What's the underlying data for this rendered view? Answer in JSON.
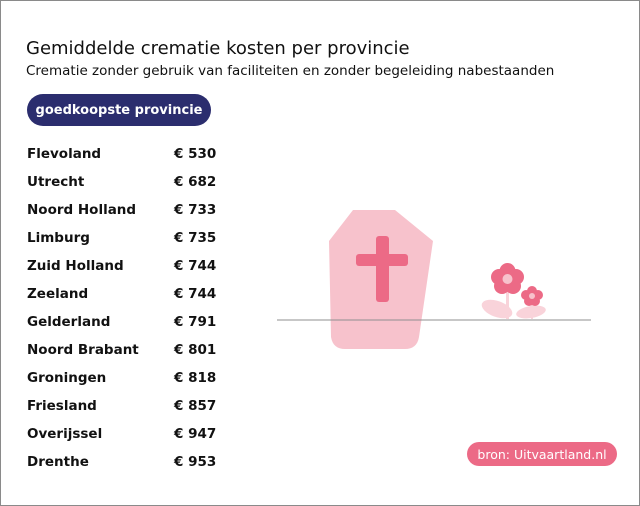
{
  "colors": {
    "pill_bg": "#2b2d6e",
    "accent_pink": "#ec6a86",
    "light_pink": "#f7c2cc",
    "flower_light": "#f9d3da"
  },
  "icons": [
    "cross-icon",
    "coffin-icon",
    "flower-icon"
  ],
  "header": {
    "title": "Gemiddelde crematie kosten per provincie",
    "subtitle": "Crematie zonder gebruik van faciliteiten en zonder begeleiding nabestaanden"
  },
  "badge": {
    "label": "goedkoopste provincie"
  },
  "chart_data": {
    "type": "table",
    "currency": "€",
    "rows": [
      {
        "province": "Flevoland",
        "price": 530,
        "price_label": "€ 530"
      },
      {
        "province": "Utrecht",
        "price": 682,
        "price_label": "€ 682"
      },
      {
        "province": "Noord Holland",
        "price": 733,
        "price_label": "€ 733"
      },
      {
        "province": "Limburg",
        "price": 735,
        "price_label": "€ 735"
      },
      {
        "province": "Zuid Holland",
        "price": 744,
        "price_label": "€ 744"
      },
      {
        "province": "Zeeland",
        "price": 744,
        "price_label": "€ 744"
      },
      {
        "province": "Gelderland",
        "price": 791,
        "price_label": "€ 791"
      },
      {
        "province": "Noord Brabant",
        "price": 801,
        "price_label": "€ 801"
      },
      {
        "province": "Groningen",
        "price": 818,
        "price_label": "€ 818"
      },
      {
        "province": "Friesland",
        "price": 857,
        "price_label": "€ 857"
      },
      {
        "province": "Overijssel",
        "price": 947,
        "price_label": "€ 947"
      },
      {
        "province": "Drenthe",
        "price": 953,
        "price_label": "€ 953"
      }
    ]
  },
  "source": {
    "label": "bron: Uitvaartland.nl"
  }
}
